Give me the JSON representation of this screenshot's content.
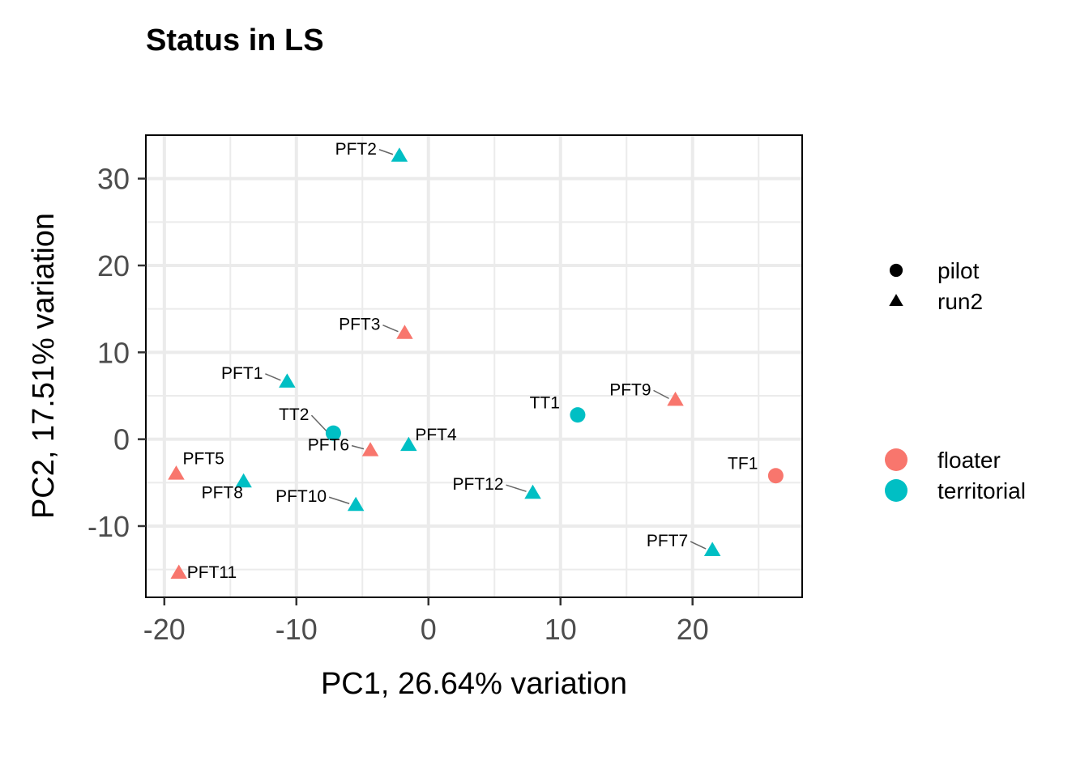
{
  "chart_data": {
    "type": "scatter",
    "title": "Status in LS",
    "xlabel": "PC1, 26.64% variation",
    "ylabel": "PC2, 17.51% variation",
    "xlim": [
      -21.4,
      28.3
    ],
    "ylim": [
      -18.2,
      35.0
    ],
    "x_ticks": [
      -20,
      -10,
      0,
      10,
      20
    ],
    "y_ticks": [
      -10,
      0,
      10,
      20,
      30
    ],
    "x_tick_labels": [
      "-20",
      "-10",
      "0",
      "10",
      "20"
    ],
    "y_tick_labels": [
      "-10",
      "0",
      "10",
      "20",
      "30"
    ],
    "grid": true,
    "legend_position": "right",
    "shape_legend": [
      {
        "label": "pilot",
        "shape": "circle"
      },
      {
        "label": "run2",
        "shape": "triangle"
      }
    ],
    "color_legend": [
      {
        "label": "floater",
        "color": "#F8766D"
      },
      {
        "label": "territorial",
        "color": "#00BFC4"
      }
    ],
    "points": [
      {
        "label": "PFT2",
        "x": -2.2,
        "y": 32.6,
        "status": "territorial",
        "batch": "run2"
      },
      {
        "label": "PFT3",
        "x": -1.8,
        "y": 12.2,
        "status": "floater",
        "batch": "run2"
      },
      {
        "label": "PFT1",
        "x": -10.7,
        "y": 6.6,
        "status": "territorial",
        "batch": "run2"
      },
      {
        "label": "TT2",
        "x": -7.2,
        "y": 0.7,
        "status": "territorial",
        "batch": "pilot"
      },
      {
        "label": "PFT6",
        "x": -4.4,
        "y": -1.3,
        "status": "floater",
        "batch": "run2"
      },
      {
        "label": "PFT4",
        "x": -1.5,
        "y": -0.7,
        "status": "territorial",
        "batch": "run2"
      },
      {
        "label": "TT1",
        "x": 11.3,
        "y": 2.8,
        "status": "territorial",
        "batch": "pilot"
      },
      {
        "label": "PFT9",
        "x": 18.7,
        "y": 4.5,
        "status": "floater",
        "batch": "run2"
      },
      {
        "label": "TF1",
        "x": 26.3,
        "y": -4.2,
        "status": "floater",
        "batch": "pilot"
      },
      {
        "label": "PFT5",
        "x": -19.1,
        "y": -4.0,
        "status": "floater",
        "batch": "run2"
      },
      {
        "label": "PFT8",
        "x": -14.0,
        "y": -4.9,
        "status": "territorial",
        "batch": "run2"
      },
      {
        "label": "PFT10",
        "x": -5.5,
        "y": -7.6,
        "status": "territorial",
        "batch": "run2"
      },
      {
        "label": "PFT12",
        "x": 7.9,
        "y": -6.2,
        "status": "territorial",
        "batch": "run2"
      },
      {
        "label": "PFT7",
        "x": 21.5,
        "y": -12.8,
        "status": "territorial",
        "batch": "run2"
      },
      {
        "label": "PFT11",
        "x": -18.9,
        "y": -15.4,
        "status": "floater",
        "batch": "run2"
      }
    ]
  }
}
